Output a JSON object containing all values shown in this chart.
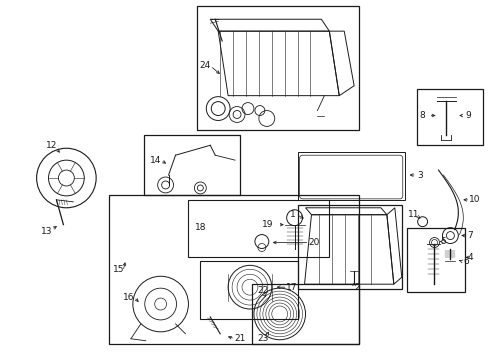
{
  "bg_color": "#ffffff",
  "figsize": [
    4.89,
    3.6
  ],
  "dpi": 100,
  "gray": "#1a1a1a"
}
